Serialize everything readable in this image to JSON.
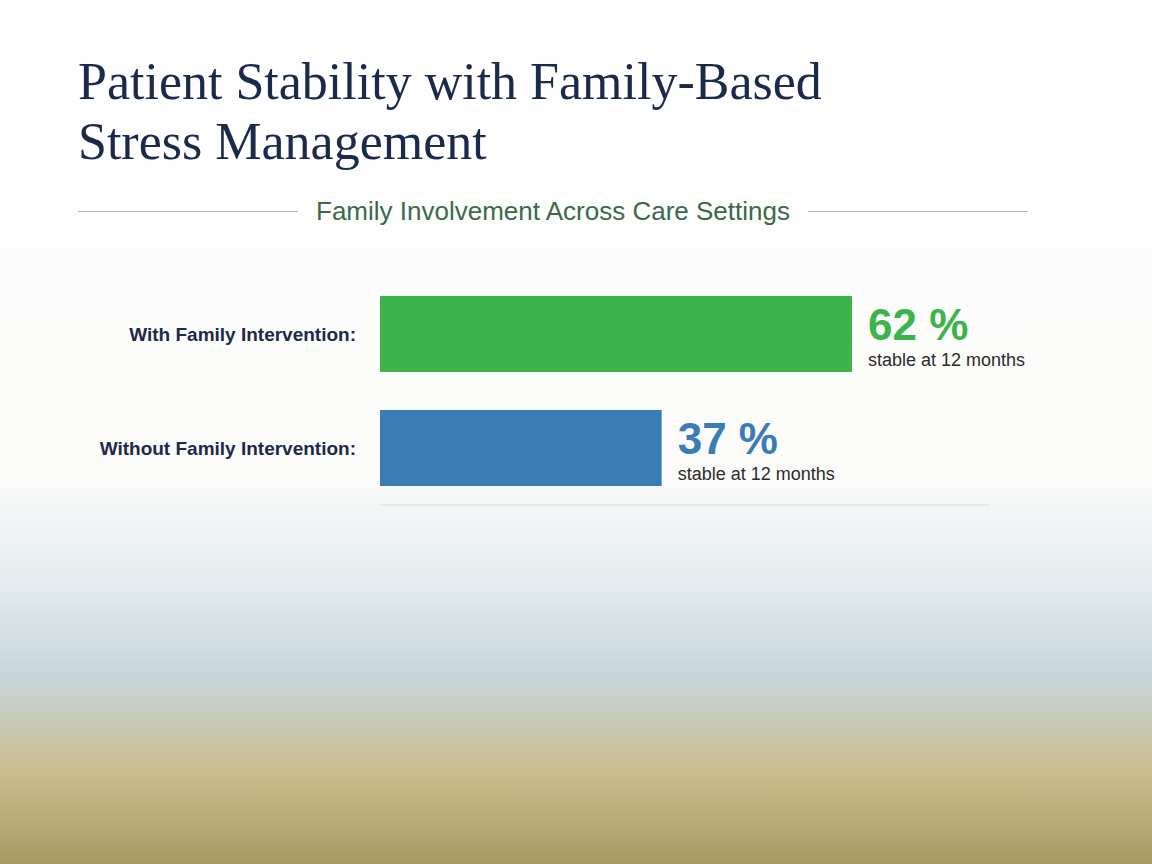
{
  "chart_data": {
    "type": "bar",
    "title": "Patient Stability with Family-Based Stress Management",
    "subtitle": "Family Involvement Across Care Settings",
    "orientation": "horizontal",
    "categories": [
      "With Family Intervention:",
      "Without Family Intervention:"
    ],
    "values": [
      62,
      37
    ],
    "value_labels": [
      "62 %",
      "37 %"
    ],
    "annotations": [
      "stable at 12 months",
      "stable at 12 months"
    ],
    "colors": [
      "#3cb44b",
      "#3a7cb6"
    ],
    "xlim": [
      0,
      80
    ],
    "data_labels": true,
    "tick_labels": "y",
    "grid": false
  }
}
